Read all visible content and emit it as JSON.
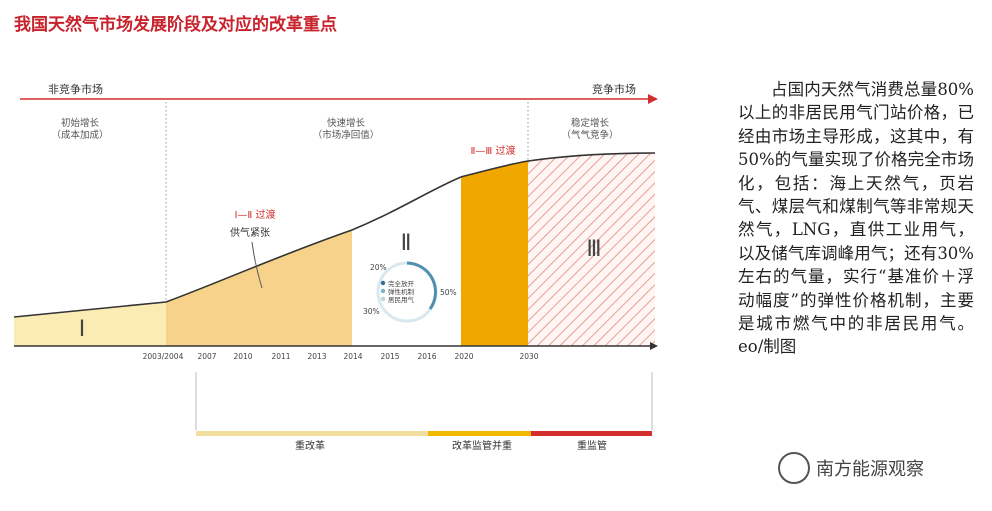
{
  "title": "我国天然气市场发展阶段及对应的改革重点",
  "arrow": {
    "left_label": "非竞争市场",
    "right_label": "竞争市场"
  },
  "phases": [
    {
      "name": "初始增长",
      "sub": "（成本加成）"
    },
    {
      "name": "快速增长",
      "sub": "（市场净回值）"
    },
    {
      "name": "稳定增长",
      "sub": "（气气竞争）"
    }
  ],
  "transitions": {
    "t1": "Ⅰ—Ⅱ 过渡",
    "t2": "Ⅱ—Ⅲ 过渡"
  },
  "annotation": "供气紧张",
  "stage_labels": [
    "Ⅰ",
    "Ⅱ",
    "Ⅲ"
  ],
  "years": [
    "2003/2004",
    "2007",
    "2010",
    "2011",
    "2013",
    "2014",
    "2015",
    "2016",
    "2020",
    "2030"
  ],
  "donut": {
    "legend": [
      "完全放开",
      "弹性机制",
      "居民用气"
    ],
    "pct_left_top": "20%",
    "pct_left_bottom": "30%",
    "pct_right": "50%"
  },
  "reform_bars": [
    {
      "label": "重改革",
      "color": "#f2dfa0"
    },
    {
      "label": "改革监管并重",
      "color": "#f0b800"
    },
    {
      "label": "重监管",
      "color": "#d42d2d"
    }
  ],
  "colors": {
    "red": "#d42d2d",
    "stage1": "#fbecb4",
    "stage_fast": "#f7d28a",
    "stage_transition": "#f0a800",
    "stage3_hatch": "#e89a90"
  },
  "side_text": "占国内天然气消费总量80%以上的非居民用气门站价格，已经由市场主导形成，这其中，有50%的气量实现了价格完全市场化，包括：海上天然气，页岩气、煤层气和煤制气等非常规天然气，LNG，直供工业用气，以及储气库调峰用气；还有30%左右的气量，实行“基准价＋浮动幅度”的弹性价格机制，主要是城市燃气中的非居民用气。eo/制图",
  "watermark": "南方能源观察"
}
